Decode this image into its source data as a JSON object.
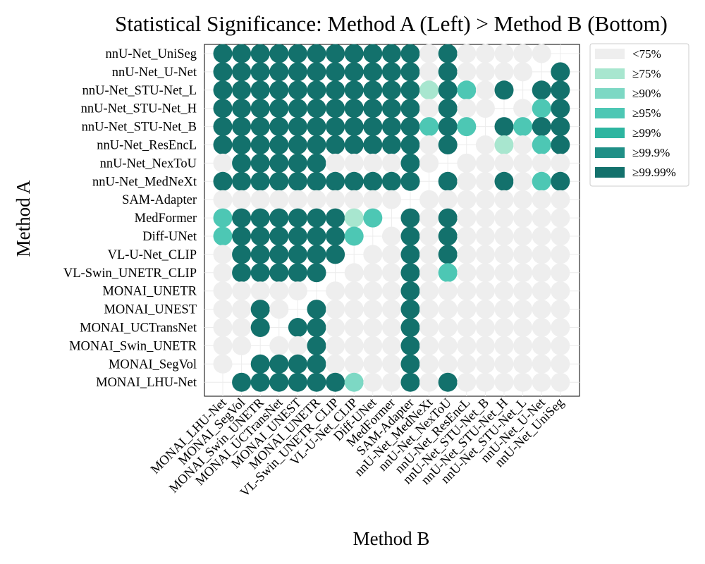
{
  "chart_data": {
    "type": "heatmap",
    "title": "Statistical Significance: Method A (Left) > Method B (Bottom)",
    "xlabel": "Method B",
    "ylabel": "Method A",
    "grid": true,
    "legend_placement": "outside-upper-right",
    "x_categories": [
      "MONAI_LHU-Net",
      "MONAI_SegVol",
      "MONAI_Swin_UNETR",
      "MONAI_UCTransNet",
      "MONAI_UNEST",
      "MONAI_UNETR",
      "VL-Swin_UNETR_CLIP",
      "VL-U-Net_CLIP",
      "Diff-UNet",
      "MedFormer",
      "SAM-Adapter",
      "nnU-Net_MedNeXt",
      "nnU-Net_NexToU",
      "nnU-Net_ResEncL",
      "nnU-Net_STU-Net_B",
      "nnU-Net_STU-Net_H",
      "nnU-Net_STU-Net_L",
      "nnU-Net_U-Net",
      "nnU-Net_UniSeg"
    ],
    "y_categories": [
      "nnU-Net_UniSeg",
      "nnU-Net_U-Net",
      "nnU-Net_STU-Net_L",
      "nnU-Net_STU-Net_H",
      "nnU-Net_STU-Net_B",
      "nnU-Net_ResEncL",
      "nnU-Net_NexToU",
      "nnU-Net_MedNeXt",
      "SAM-Adapter",
      "MedFormer",
      "Diff-UNet",
      "VL-U-Net_CLIP",
      "VL-Swin_UNETR_CLIP",
      "MONAI_UNETR",
      "MONAI_UNEST",
      "MONAI_UCTransNet",
      "MONAI_Swin_UNETR",
      "MONAI_SegVol",
      "MONAI_LHU-Net"
    ],
    "legend": [
      {
        "label": "<75%",
        "color": "#eeeeee"
      },
      {
        "label": "≥75%",
        "color": "#a8e6cf"
      },
      {
        "label": "≥90%",
        "color": "#7dd8c4"
      },
      {
        "label": "≥95%",
        "color": "#4dc7b4"
      },
      {
        "label": "≥99%",
        "color": "#2db5a0"
      },
      {
        "label": "≥99.9%",
        "color": "#1f8f86"
      },
      {
        "label": "≥99.99%",
        "color": "#13716c"
      }
    ],
    "level_encoding": "matrix values: -1 = no marker (diagonal/blank), 0..6 = index into legend",
    "matrix": [
      [
        6,
        6,
        6,
        6,
        6,
        6,
        6,
        6,
        6,
        6,
        6,
        0,
        6,
        0,
        0,
        0,
        0,
        0,
        -1
      ],
      [
        6,
        6,
        6,
        6,
        6,
        6,
        6,
        6,
        6,
        6,
        6,
        0,
        6,
        0,
        0,
        0,
        0,
        -1,
        6
      ],
      [
        6,
        6,
        6,
        6,
        6,
        6,
        6,
        6,
        6,
        6,
        6,
        1,
        6,
        3,
        0,
        6,
        -1,
        6,
        6
      ],
      [
        6,
        6,
        6,
        6,
        6,
        6,
        6,
        6,
        6,
        6,
        6,
        0,
        6,
        0,
        0,
        -1,
        0,
        3,
        6
      ],
      [
        6,
        6,
        6,
        6,
        6,
        6,
        6,
        6,
        6,
        6,
        6,
        3,
        6,
        3,
        -1,
        6,
        3,
        6,
        6
      ],
      [
        6,
        6,
        6,
        6,
        6,
        6,
        6,
        6,
        6,
        6,
        6,
        0,
        6,
        -1,
        0,
        1,
        0,
        3,
        6
      ],
      [
        0,
        6,
        6,
        6,
        6,
        6,
        0,
        0,
        0,
        0,
        6,
        0,
        -1,
        0,
        0,
        0,
        0,
        0,
        0
      ],
      [
        6,
        6,
        6,
        6,
        6,
        6,
        6,
        6,
        6,
        6,
        6,
        -1,
        6,
        0,
        0,
        6,
        0,
        3,
        6
      ],
      [
        0,
        0,
        0,
        0,
        0,
        0,
        0,
        0,
        0,
        0,
        -1,
        0,
        0,
        0,
        0,
        0,
        0,
        0,
        0
      ],
      [
        3,
        6,
        6,
        6,
        6,
        6,
        6,
        1,
        3,
        -1,
        6,
        0,
        6,
        0,
        0,
        0,
        0,
        0,
        0
      ],
      [
        3,
        6,
        6,
        6,
        6,
        6,
        6,
        3,
        -1,
        0,
        6,
        0,
        6,
        0,
        0,
        0,
        0,
        0,
        0
      ],
      [
        0,
        6,
        6,
        6,
        6,
        6,
        6,
        -1,
        0,
        0,
        6,
        0,
        6,
        0,
        0,
        0,
        0,
        0,
        0
      ],
      [
        0,
        6,
        6,
        6,
        6,
        6,
        -1,
        0,
        0,
        0,
        6,
        0,
        3,
        0,
        0,
        0,
        0,
        0,
        0
      ],
      [
        0,
        0,
        0,
        0,
        0,
        -1,
        0,
        0,
        0,
        0,
        6,
        0,
        0,
        0,
        0,
        0,
        0,
        0,
        0
      ],
      [
        0,
        0,
        6,
        0,
        -1,
        6,
        0,
        0,
        0,
        0,
        6,
        0,
        0,
        0,
        0,
        0,
        0,
        0,
        0
      ],
      [
        0,
        0,
        6,
        -1,
        6,
        6,
        0,
        0,
        0,
        0,
        6,
        0,
        0,
        0,
        0,
        0,
        0,
        0,
        0
      ],
      [
        0,
        0,
        -1,
        0,
        0,
        6,
        0,
        0,
        0,
        0,
        6,
        0,
        0,
        0,
        0,
        0,
        0,
        0,
        0
      ],
      [
        0,
        -1,
        6,
        6,
        6,
        6,
        0,
        0,
        0,
        0,
        6,
        0,
        0,
        0,
        0,
        0,
        0,
        0,
        0
      ],
      [
        -1,
        6,
        6,
        6,
        6,
        6,
        6,
        2,
        0,
        0,
        6,
        0,
        6,
        0,
        0,
        0,
        0,
        0,
        0
      ]
    ]
  }
}
